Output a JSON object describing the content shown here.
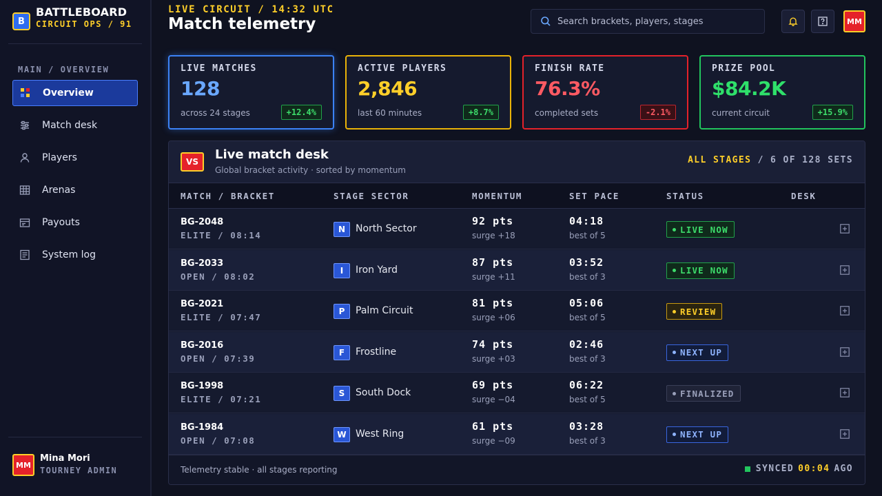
{
  "brand": {
    "logo": "B",
    "title": "BATTLEBOARD",
    "subtitle": "CIRCUIT OPS / 91"
  },
  "sidebar": {
    "heading": "MAIN / OVERVIEW",
    "items": [
      {
        "label": "Overview",
        "icon": "grid-icon",
        "active": true
      },
      {
        "label": "Match desk",
        "icon": "sliders-icon"
      },
      {
        "label": "Players",
        "icon": "user-icon"
      },
      {
        "label": "Arenas",
        "icon": "table-icon"
      },
      {
        "label": "Payouts",
        "icon": "wallet-icon"
      },
      {
        "label": "System log",
        "icon": "log-icon"
      }
    ],
    "user": {
      "initials": "MM",
      "name": "Mina Mori",
      "role": "TOURNEY ADMIN"
    }
  },
  "header": {
    "kicker": "LIVE CIRCUIT / 14:32 UTC",
    "title": "Match telemetry",
    "search_placeholder": "Search brackets, players, stages",
    "avatar_initials": "MM"
  },
  "stats": [
    {
      "label": "LIVE MATCHES",
      "value": "128",
      "sub": "across 24 stages",
      "delta": "+12.4%",
      "color": "#3b82f6",
      "value_color": "#6aa8ff",
      "trend": "up"
    },
    {
      "label": "ACTIVE PLAYERS",
      "value": "2,846",
      "sub": "last 60 minutes",
      "delta": "+8.7%",
      "color": "#eab308",
      "value_color": "#ffcf29",
      "trend": "up"
    },
    {
      "label": "FINISH RATE",
      "value": "76.3%",
      "sub": "completed sets",
      "delta": "-2.1%",
      "color": "#e5222a",
      "value_color": "#ff5a63",
      "trend": "down"
    },
    {
      "label": "PRIZE POOL",
      "value": "$84.2K",
      "sub": "current circuit",
      "delta": "+15.9%",
      "color": "#22c55e",
      "value_color": "#2fe06a",
      "trend": "up"
    }
  ],
  "desk": {
    "badge": "VS",
    "title": "Live match desk",
    "subtitle": "Global bracket activity · sorted by momentum",
    "meta_accent": "ALL STAGES",
    "meta_rest": "/ 6 OF 128 SETS",
    "columns": [
      "MATCH / BRACKET",
      "STAGE SECTOR",
      "MOMENTUM",
      "SET PACE",
      "STATUS",
      "DESK"
    ],
    "rows": [
      {
        "id": "BG-2048",
        "tier": "ELITE / 08:14",
        "sector_letter": "N",
        "sector": "North Sector",
        "momentum": "92 pts",
        "surge": "surge +18",
        "pace": "04:18",
        "best": "best of 5",
        "status": "LIVE NOW",
        "status_kind": "live"
      },
      {
        "id": "BG-2033",
        "tier": "OPEN / 08:02",
        "sector_letter": "I",
        "sector": "Iron Yard",
        "momentum": "87 pts",
        "surge": "surge +11",
        "pace": "03:52",
        "best": "best of 3",
        "status": "LIVE NOW",
        "status_kind": "live"
      },
      {
        "id": "BG-2021",
        "tier": "ELITE / 07:47",
        "sector_letter": "P",
        "sector": "Palm Circuit",
        "momentum": "81 pts",
        "surge": "surge +06",
        "pace": "05:06",
        "best": "best of 5",
        "status": "REVIEW",
        "status_kind": "review"
      },
      {
        "id": "BG-2016",
        "tier": "OPEN / 07:39",
        "sector_letter": "F",
        "sector": "Frostline",
        "momentum": "74 pts",
        "surge": "surge +03",
        "pace": "02:46",
        "best": "best of 3",
        "status": "NEXT UP",
        "status_kind": "next"
      },
      {
        "id": "BG-1998",
        "tier": "ELITE / 07:21",
        "sector_letter": "S",
        "sector": "South Dock",
        "momentum": "69 pts",
        "surge": "surge −04",
        "pace": "06:22",
        "best": "best of 5",
        "status": "FINALIZED",
        "status_kind": "final"
      },
      {
        "id": "BG-1984",
        "tier": "OPEN / 07:08",
        "sector_letter": "W",
        "sector": "West Ring",
        "momentum": "61 pts",
        "surge": "surge −09",
        "pace": "03:28",
        "best": "best of 3",
        "status": "NEXT UP",
        "status_kind": "next"
      }
    ],
    "footer_note": "Telemetry stable · all stages reporting",
    "sync_prefix": "SYNCED",
    "sync_time": "00:04",
    "sync_suffix": "AGO"
  }
}
